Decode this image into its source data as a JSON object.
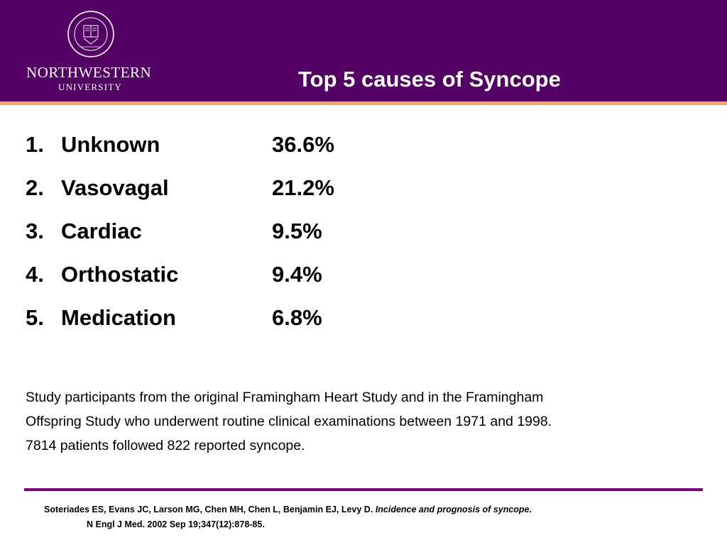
{
  "header": {
    "seal_text": "NORTHWESTERN UNIVERSITY 1851",
    "wordmark_line1": "NORTHWESTERN",
    "wordmark_line2": "UNIVERSITY",
    "title": "Top 5 causes of Syncope",
    "background_color": "#520063",
    "rule_color": "#f0a860"
  },
  "causes": [
    {
      "number": "1.",
      "name": "Unknown",
      "percent": "36.6%"
    },
    {
      "number": "2.",
      "name": "Vasovagal",
      "percent": "21.2%"
    },
    {
      "number": "3.",
      "name": "Cardiac",
      "percent": "9.5%"
    },
    {
      "number": "4.",
      "name": "Orthostatic",
      "percent": "9.4%"
    },
    {
      "number": "5.",
      "name": "Medication",
      "percent": "6.8%"
    }
  ],
  "study": {
    "line1": "Study participants from the original Framingham Heart Study and in the Framingham",
    "line2": "Offspring Study who underwent routine clinical examinations between 1971 and 1998.",
    "line3": "7814 patients followed 822 reported syncope."
  },
  "citation": {
    "authors": "Soteriades ES, Evans JC, Larson MG, Chen MH, Chen L, Benjamin EJ, Levy D.",
    "article_title": "Incidence and prognosis of syncope.",
    "journal": "N Engl J Med. 2002 Sep 19;347(12):878-85."
  },
  "footer_rule_color": "#800080"
}
